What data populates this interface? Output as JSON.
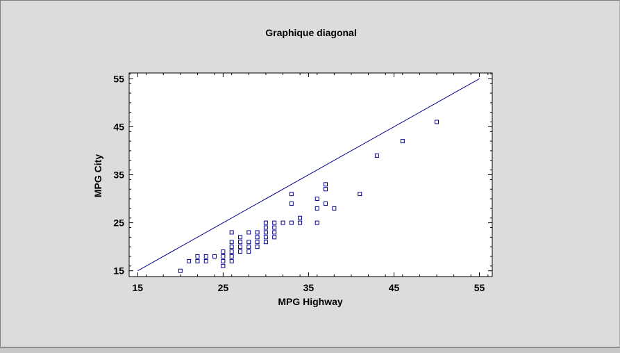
{
  "colors": {
    "background": "#dcdcdc",
    "plot_background": "#ffffff",
    "series": "#00008b"
  },
  "chart_data": {
    "type": "scatter",
    "title": "Graphique diagonal",
    "xlabel": "MPG Highway",
    "ylabel": "MPG City",
    "xlim": [
      14,
      56.5
    ],
    "ylim": [
      13.8,
      56.2
    ],
    "xticks": [
      15,
      25,
      35,
      45,
      55
    ],
    "yticks": [
      15,
      25,
      35,
      45,
      55
    ],
    "xtick_labels": [
      "15",
      "25",
      "35",
      "45",
      "55"
    ],
    "ytick_labels": [
      "15",
      "25",
      "35",
      "45",
      "55"
    ],
    "grid": false,
    "diagonal": [
      [
        15,
        15
      ],
      [
        55,
        55
      ]
    ],
    "points": [
      [
        20,
        15
      ],
      [
        21,
        17
      ],
      [
        22,
        17
      ],
      [
        22,
        18
      ],
      [
        23,
        17
      ],
      [
        23,
        18
      ],
      [
        24,
        18
      ],
      [
        25,
        16
      ],
      [
        25,
        17
      ],
      [
        25,
        18
      ],
      [
        25,
        19
      ],
      [
        26,
        17
      ],
      [
        26,
        18
      ],
      [
        26,
        19
      ],
      [
        26,
        20
      ],
      [
        26,
        21
      ],
      [
        26,
        23
      ],
      [
        27,
        19
      ],
      [
        27,
        20
      ],
      [
        27,
        21
      ],
      [
        27,
        22
      ],
      [
        28,
        19
      ],
      [
        28,
        20
      ],
      [
        28,
        21
      ],
      [
        28,
        23
      ],
      [
        29,
        20
      ],
      [
        29,
        21
      ],
      [
        29,
        22
      ],
      [
        29,
        23
      ],
      [
        30,
        21
      ],
      [
        30,
        22
      ],
      [
        30,
        23
      ],
      [
        30,
        24
      ],
      [
        30,
        25
      ],
      [
        31,
        22
      ],
      [
        31,
        23
      ],
      [
        31,
        24
      ],
      [
        31,
        25
      ],
      [
        32,
        25
      ],
      [
        33,
        25
      ],
      [
        33,
        29
      ],
      [
        33,
        31
      ],
      [
        34,
        25
      ],
      [
        34,
        26
      ],
      [
        36,
        25
      ],
      [
        36,
        28
      ],
      [
        36,
        30
      ],
      [
        37,
        29
      ],
      [
        37,
        32
      ],
      [
        37,
        33
      ],
      [
        38,
        28
      ],
      [
        41,
        31
      ],
      [
        43,
        39
      ],
      [
        46,
        42
      ],
      [
        50,
        46
      ]
    ]
  }
}
